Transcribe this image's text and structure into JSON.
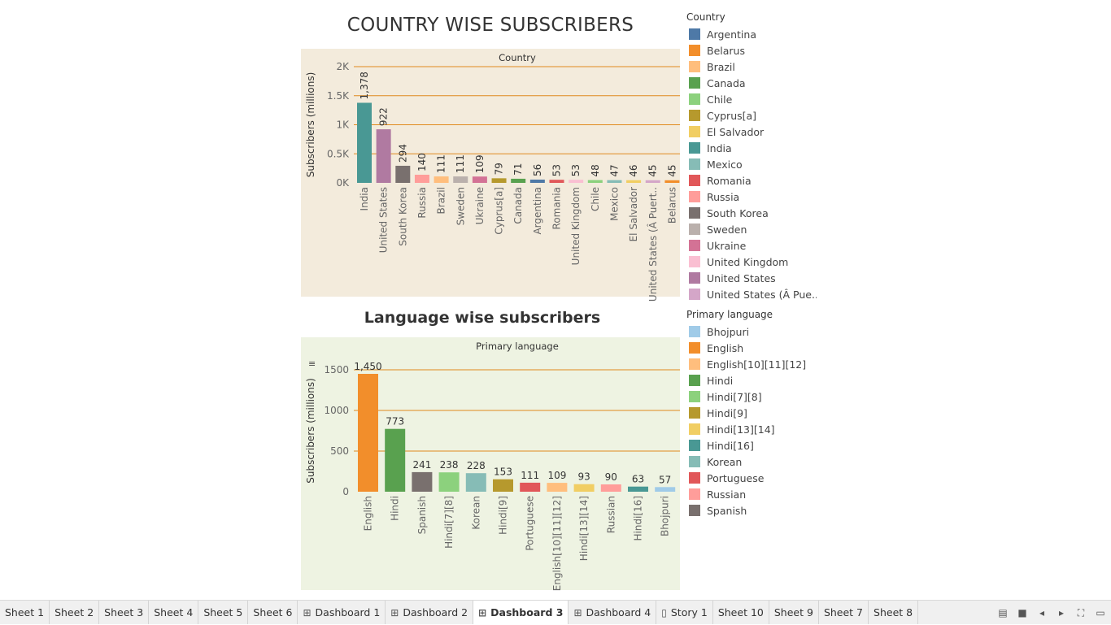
{
  "dashboard": {
    "title_top": "COUNTRY WISE SUBSCRIBERS",
    "title_bottom": "Language wise subscribers"
  },
  "legends": {
    "country": {
      "title": "Country",
      "items": [
        {
          "label": "Argentina",
          "color": "#4e79a7"
        },
        {
          "label": "Belarus",
          "color": "#f28e2b"
        },
        {
          "label": "Brazil",
          "color": "#ffbe7d"
        },
        {
          "label": "Canada",
          "color": "#59a14f"
        },
        {
          "label": "Chile",
          "color": "#8cd17d"
        },
        {
          "label": "Cyprus[a]",
          "color": "#b6992d"
        },
        {
          "label": "El Salvador",
          "color": "#f1ce63"
        },
        {
          "label": "India",
          "color": "#499894"
        },
        {
          "label": "Mexico",
          "color": "#86bcb6"
        },
        {
          "label": "Romania",
          "color": "#e15759"
        },
        {
          "label": "Russia",
          "color": "#ff9d9a"
        },
        {
          "label": "South Korea",
          "color": "#79706e"
        },
        {
          "label": "Sweden",
          "color": "#bab0ac"
        },
        {
          "label": "Ukraine",
          "color": "#d37295"
        },
        {
          "label": "United Kingdom",
          "color": "#fabfd2"
        },
        {
          "label": "United States",
          "color": "#b07aa1"
        },
        {
          "label": "United States (Â Pue..",
          "color": "#d4a6c8"
        }
      ]
    },
    "language": {
      "title": "Primary language",
      "items": [
        {
          "label": "Bhojpuri",
          "color": "#a0cbe8"
        },
        {
          "label": "English",
          "color": "#f28e2b"
        },
        {
          "label": "English[10][11][12]",
          "color": "#ffbe7d"
        },
        {
          "label": "Hindi",
          "color": "#59a14f"
        },
        {
          "label": "Hindi[7][8]",
          "color": "#8cd17d"
        },
        {
          "label": "Hindi[9]",
          "color": "#b6992d"
        },
        {
          "label": "Hindi[13][14]",
          "color": "#f1ce63"
        },
        {
          "label": "Hindi[16]",
          "color": "#499894"
        },
        {
          "label": "Korean",
          "color": "#86bcb6"
        },
        {
          "label": "Portuguese",
          "color": "#e15759"
        },
        {
          "label": "Russian",
          "color": "#ff9d9a"
        },
        {
          "label": "Spanish",
          "color": "#79706e"
        }
      ]
    }
  },
  "chart_data": [
    {
      "type": "bar",
      "header": "Country",
      "ylabel": "Subscribers (millions)",
      "ylim": [
        0,
        2000
      ],
      "yticks": [
        0,
        500,
        1000,
        1500,
        2000
      ],
      "ytick_labels": [
        "0K",
        "0.5K",
        "1K",
        "1.5K",
        "2K"
      ],
      "grid": true,
      "categories": [
        "India",
        "United States",
        "South Korea",
        "Russia",
        "Brazil",
        "Sweden",
        "Ukraine",
        "Cyprus[a]",
        "Canada",
        "Argentina",
        "Romania",
        "United Kingdom",
        "Chile",
        "Mexico",
        "El Salvador",
        "United States (Â Puert..",
        "Belarus"
      ],
      "values": [
        1378,
        922,
        294,
        140,
        111,
        111,
        109,
        79,
        71,
        56,
        53,
        53,
        48,
        47,
        46,
        45,
        45
      ],
      "value_labels": [
        "1,378",
        "922",
        "294",
        "140",
        "111",
        "111",
        "109",
        "79",
        "71",
        "56",
        "53",
        "53",
        "48",
        "47",
        "46",
        "45",
        "45"
      ],
      "colors": [
        "#499894",
        "#b07aa1",
        "#79706e",
        "#ff9d9a",
        "#ffbe7d",
        "#bab0ac",
        "#d37295",
        "#b6992d",
        "#59a14f",
        "#4e79a7",
        "#e15759",
        "#fabfd2",
        "#8cd17d",
        "#86bcb6",
        "#f1ce63",
        "#d4a6c8",
        "#f28e2b"
      ]
    },
    {
      "type": "bar",
      "header": "Primary language",
      "ylabel": "Subscribers (millions)",
      "ylim": [
        0,
        1500
      ],
      "yticks": [
        0,
        500,
        1000,
        1500
      ],
      "ytick_labels": [
        "0",
        "500",
        "1000",
        "1500"
      ],
      "grid": true,
      "categories": [
        "English",
        "Hindi",
        "Spanish",
        "Hindi[7][8]",
        "Korean",
        "Hindi[9]",
        "Portuguese",
        "English[10][11][12]",
        "Hindi[13][14]",
        "Russian",
        "Hindi[16]",
        "Bhojpuri"
      ],
      "values": [
        1450,
        773,
        241,
        238,
        228,
        153,
        111,
        109,
        93,
        90,
        63,
        57
      ],
      "value_labels": [
        "1,450",
        "773",
        "241",
        "238",
        "228",
        "153",
        "111",
        "109",
        "93",
        "90",
        "63",
        "57"
      ],
      "colors": [
        "#f28e2b",
        "#59a14f",
        "#79706e",
        "#8cd17d",
        "#86bcb6",
        "#b6992d",
        "#e15759",
        "#ffbe7d",
        "#f1ce63",
        "#ff9d9a",
        "#499894",
        "#a0cbe8"
      ]
    }
  ],
  "tabs": [
    {
      "label": "Sheet 1",
      "icon": "",
      "active": false
    },
    {
      "label": "Sheet 2",
      "icon": "",
      "active": false
    },
    {
      "label": "Sheet 3",
      "icon": "",
      "active": false
    },
    {
      "label": "Sheet 4",
      "icon": "",
      "active": false
    },
    {
      "label": "Sheet 5",
      "icon": "",
      "active": false
    },
    {
      "label": "Sheet 6",
      "icon": "",
      "active": false
    },
    {
      "label": "Dashboard 1",
      "icon": "dashboard-icon",
      "active": false
    },
    {
      "label": "Dashboard 2",
      "icon": "dashboard-icon",
      "active": false
    },
    {
      "label": "Dashboard 3",
      "icon": "dashboard-icon",
      "active": true
    },
    {
      "label": "Dashboard 4",
      "icon": "dashboard-icon",
      "active": false
    },
    {
      "label": "Story 1",
      "icon": "story-icon",
      "active": false
    },
    {
      "label": "Sheet 10",
      "icon": "",
      "active": false
    },
    {
      "label": "Sheet 9",
      "icon": "",
      "active": false
    },
    {
      "label": "Sheet 7",
      "icon": "",
      "active": false
    },
    {
      "label": "Sheet 8",
      "icon": "",
      "active": false
    }
  ],
  "tab_controls": [
    "show-filmstrip-icon",
    "show-tabs-icon",
    "previous-sheet-icon",
    "next-sheet-icon",
    "fit-screen-icon",
    "presentation-mode-icon"
  ]
}
